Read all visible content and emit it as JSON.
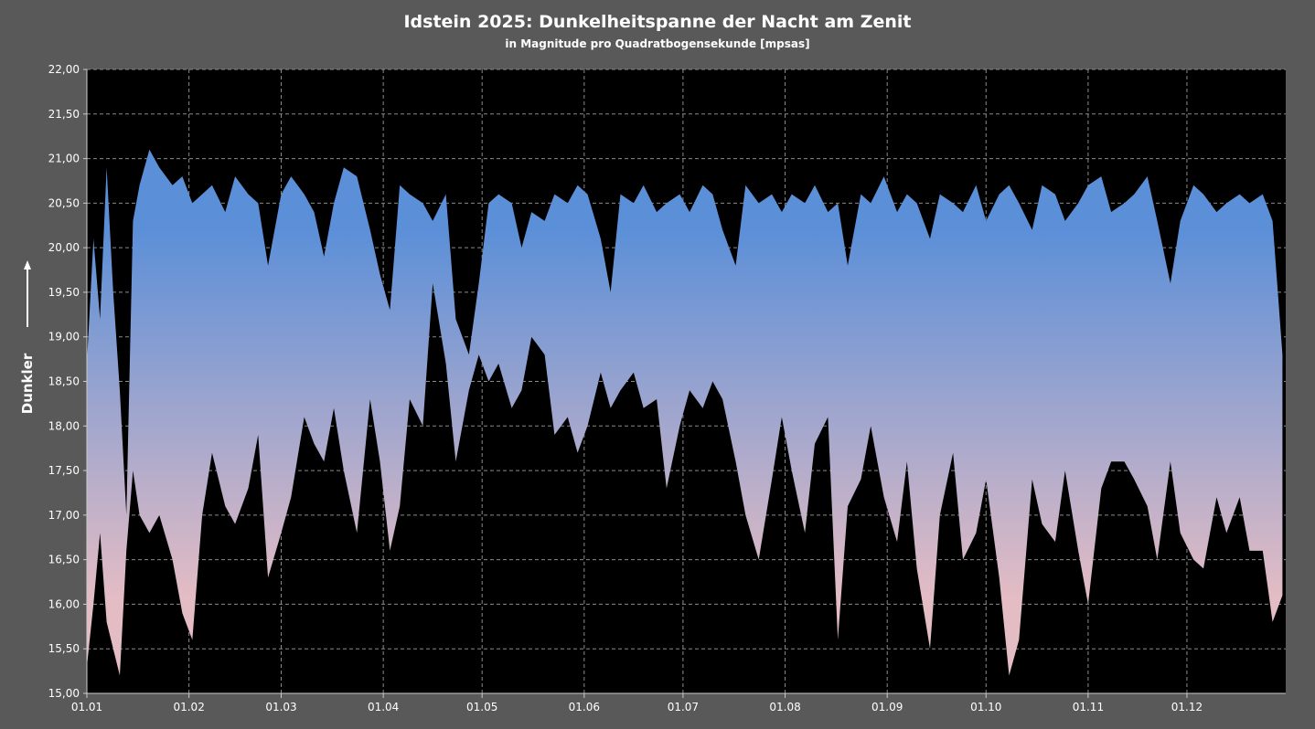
{
  "chart_data": {
    "type": "area",
    "title": "Idstein 2025: Dunkelheitspanne der Nacht am Zenit",
    "subtitle": "in Magnitude pro Quadratbogensekunde [mpsas]",
    "xlabel": "",
    "ylabel": "Dunkler",
    "ylim": [
      15.0,
      22.0
    ],
    "y_ticks": [
      "15,00",
      "15,50",
      "16,00",
      "16,50",
      "17,00",
      "17,50",
      "18,00",
      "18,50",
      "19,00",
      "19,50",
      "20,00",
      "20,50",
      "21,00",
      "21,50",
      "22,00"
    ],
    "x_ticks": [
      "01.01",
      "01.02",
      "01.03",
      "01.04",
      "01.05",
      "01.06",
      "01.07",
      "01.08",
      "01.09",
      "01.10",
      "01.11",
      "01.12"
    ],
    "x_range_days": [
      1,
      365
    ],
    "grid": true,
    "legend": "none",
    "fill_gradient": {
      "top": "#5b8fd8",
      "bottom": "#e3bcc4"
    },
    "series": [
      {
        "x_days": [
          1,
          3,
          5,
          7,
          9,
          11,
          13,
          15,
          17,
          20,
          23,
          27,
          30,
          33,
          36,
          39,
          43,
          46,
          50,
          53,
          56,
          60,
          63,
          67,
          70,
          73,
          76,
          79,
          83,
          87,
          90,
          93,
          96,
          99,
          103,
          106,
          110,
          113,
          117,
          120,
          123,
          126,
          130,
          133,
          136,
          140,
          143,
          147,
          150,
          153,
          157,
          160,
          163,
          167,
          170,
          174,
          177,
          181,
          184,
          188,
          191,
          194,
          198,
          201,
          205,
          209,
          212,
          215,
          219,
          222,
          226,
          229,
          232,
          236,
          239,
          243,
          247,
          250,
          253,
          257,
          260,
          264,
          267,
          271,
          274,
          278,
          281,
          284,
          288,
          291,
          295,
          298,
          302,
          305,
          309,
          312,
          316,
          319,
          323,
          326,
          330,
          333,
          337,
          340,
          344,
          347,
          351,
          354,
          358,
          361,
          364
        ],
        "max": [
          18.7,
          20.1,
          19.2,
          20.9,
          19.5,
          18.4,
          17.0,
          20.3,
          20.7,
          21.1,
          20.9,
          20.7,
          20.8,
          20.5,
          20.6,
          20.7,
          20.4,
          20.8,
          20.6,
          20.5,
          19.8,
          20.6,
          20.8,
          20.6,
          20.4,
          19.9,
          20.5,
          20.9,
          20.8,
          20.2,
          19.7,
          19.3,
          20.7,
          20.6,
          20.5,
          20.3,
          20.6,
          19.2,
          18.8,
          19.6,
          20.5,
          20.6,
          20.5,
          20.0,
          20.4,
          20.3,
          20.6,
          20.5,
          20.7,
          20.6,
          20.1,
          19.5,
          20.6,
          20.5,
          20.7,
          20.4,
          20.5,
          20.6,
          20.4,
          20.7,
          20.6,
          20.2,
          19.8,
          20.7,
          20.5,
          20.6,
          20.4,
          20.6,
          20.5,
          20.7,
          20.4,
          20.5,
          19.8,
          20.6,
          20.5,
          20.8,
          20.4,
          20.6,
          20.5,
          20.1,
          20.6,
          20.5,
          20.4,
          20.7,
          20.3,
          20.6,
          20.7,
          20.5,
          20.2,
          20.7,
          20.6,
          20.3,
          20.5,
          20.7,
          20.8,
          20.4,
          20.5,
          20.6,
          20.8,
          20.3,
          19.6,
          20.3,
          20.7,
          20.6,
          20.4,
          20.5,
          20.6,
          20.5,
          20.6,
          20.3,
          18.8
        ],
        "min": [
          15.3,
          16.0,
          16.8,
          15.8,
          15.5,
          15.2,
          16.6,
          17.5,
          17.0,
          16.8,
          17.0,
          16.5,
          15.9,
          15.6,
          17.0,
          17.7,
          17.1,
          16.9,
          17.3,
          17.9,
          16.3,
          16.8,
          17.2,
          18.1,
          17.8,
          17.6,
          18.2,
          17.5,
          16.8,
          18.3,
          17.6,
          16.6,
          17.1,
          18.3,
          18.0,
          19.6,
          18.7,
          17.6,
          18.4,
          18.8,
          18.5,
          18.7,
          18.2,
          18.4,
          19.0,
          18.8,
          17.9,
          18.1,
          17.7,
          18.0,
          18.6,
          18.2,
          18.4,
          18.6,
          18.2,
          18.3,
          17.3,
          18.0,
          18.4,
          18.2,
          18.5,
          18.3,
          17.6,
          17.0,
          16.5,
          17.4,
          18.1,
          17.5,
          16.8,
          17.8,
          18.1,
          15.6,
          17.1,
          17.4,
          18.0,
          17.2,
          16.7,
          17.6,
          16.4,
          15.5,
          17.0,
          17.7,
          16.5,
          16.8,
          17.4,
          16.3,
          15.2,
          15.6,
          17.4,
          16.9,
          16.7,
          17.5,
          16.6,
          16.0,
          17.3,
          17.6,
          17.6,
          17.4,
          17.1,
          16.5,
          17.6,
          16.8,
          16.5,
          16.4,
          17.2,
          16.8,
          17.2,
          16.6,
          16.6,
          15.8,
          16.1
        ]
      }
    ]
  }
}
